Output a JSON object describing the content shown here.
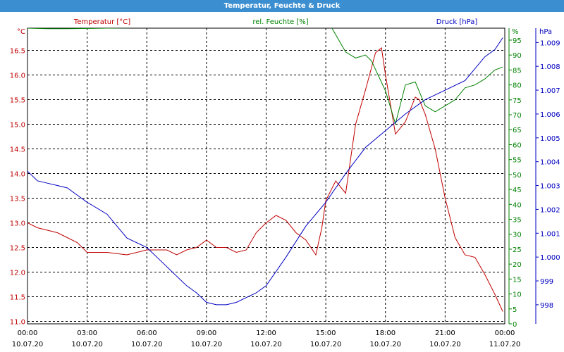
{
  "chart_data": {
    "type": "line",
    "title": "Temperatur, Feuchte & Druck",
    "colors": {
      "temperature": "#c00000",
      "humidity": "#008000",
      "pressure": "#0000c0",
      "title_bar": "#3b8ed0",
      "grid": "#000000"
    },
    "axes": {
      "x": {
        "range": [
          0,
          24
        ],
        "ticks": [
          {
            "h": 0,
            "time": "00:00",
            "date": "10.07.20"
          },
          {
            "h": 3,
            "time": "03:00",
            "date": "10.07.20"
          },
          {
            "h": 6,
            "time": "06:00",
            "date": "10.07.20"
          },
          {
            "h": 9,
            "time": "09:00",
            "date": "10.07.20"
          },
          {
            "h": 12,
            "time": "12:00",
            "date": "10.07.20"
          },
          {
            "h": 15,
            "time": "15:00",
            "date": "10.07.20"
          },
          {
            "h": 18,
            "time": "18:00",
            "date": "10.07.20"
          },
          {
            "h": 21,
            "time": "21:00",
            "date": "10.07.20"
          },
          {
            "h": 24,
            "time": "00:00",
            "date": "11.07.20"
          }
        ]
      },
      "temperature": {
        "label": "Temperatur [°C]",
        "unit": "°C",
        "range": [
          10.95,
          16.95
        ],
        "ticks": [
          "11.0",
          "11.5",
          "12.0",
          "12.5",
          "13.0",
          "13.5",
          "14.0",
          "14.5",
          "15.0",
          "15.5",
          "16.0",
          "16.5"
        ]
      },
      "humidity": {
        "label": "rel. Feuchte [%]",
        "unit": "%",
        "range": [
          0,
          99
        ],
        "ticks": [
          "0",
          "5",
          "10",
          "15",
          "20",
          "25",
          "30",
          "35",
          "40",
          "45",
          "50",
          "55",
          "60",
          "65",
          "70",
          "75",
          "80",
          "85",
          "90",
          "95"
        ],
        "top_label": "%"
      },
      "pressure": {
        "label": "Druck [hPa]",
        "unit": "hPa",
        "range": [
          997.2,
          1009.6
        ],
        "ticks": [
          "998",
          "999",
          "1.000",
          "1.001",
          "1.002",
          "1.003",
          "1.004",
          "1.005",
          "1.006",
          "1.007",
          "1.008",
          "1.009"
        ]
      }
    },
    "series": [
      {
        "name": "Temperatur [°C]",
        "axis": "temperature",
        "x": [
          0,
          0.5,
          1,
          1.5,
          2,
          2.5,
          3,
          4,
          5,
          6,
          7,
          7.5,
          8,
          8.5,
          9,
          9.5,
          10,
          10.5,
          11,
          11.5,
          12,
          12.5,
          13,
          13.5,
          14,
          14.5,
          14.8,
          15,
          15.5,
          16,
          16.5,
          17,
          17.5,
          17.8,
          18,
          18.5,
          19,
          19.5,
          19.7,
          20,
          20.5,
          21,
          21.5,
          22,
          22.5,
          23,
          23.5,
          23.9
        ],
        "values": [
          13.0,
          12.9,
          12.85,
          12.8,
          12.7,
          12.6,
          12.4,
          12.4,
          12.35,
          12.45,
          12.45,
          12.35,
          12.45,
          12.5,
          12.65,
          12.5,
          12.5,
          12.4,
          12.45,
          12.8,
          13.0,
          13.15,
          13.05,
          12.8,
          12.65,
          12.35,
          12.9,
          13.45,
          13.85,
          13.6,
          15.0,
          15.7,
          16.45,
          16.55,
          16.0,
          14.8,
          15.05,
          15.55,
          15.5,
          15.2,
          14.5,
          13.5,
          12.7,
          12.35,
          12.3,
          11.95,
          11.55,
          11.2
        ]
      },
      {
        "name": "rel. Feuchte [%]",
        "axis": "humidity",
        "x": [
          0,
          1,
          2,
          3,
          4,
          5,
          6,
          7,
          8,
          9,
          10,
          11,
          12,
          13,
          14,
          14.4,
          15,
          15.3,
          16,
          16.5,
          17,
          17.3,
          18,
          18.5,
          19,
          19.5,
          20,
          20.5,
          21,
          21.5,
          22,
          22.5,
          23,
          23.5,
          23.9
        ],
        "values": [
          99,
          98.8,
          98.8,
          98.9,
          99,
          99.1,
          99.2,
          99.2,
          99.3,
          99.3,
          99.3,
          99.3,
          99.3,
          99.3,
          99.3,
          99.3,
          99.3,
          99.1,
          91,
          89,
          90,
          88,
          78,
          67,
          80,
          81,
          73,
          71,
          73,
          75,
          79,
          80,
          82,
          85,
          86
        ]
      },
      {
        "name": "Druck [hPa]",
        "axis": "pressure",
        "x": [
          0,
          0.5,
          1,
          1.5,
          2,
          2.5,
          3,
          4,
          5,
          6,
          6.5,
          7,
          7.5,
          8,
          8.5,
          9,
          9.5,
          10,
          10.5,
          11,
          11.5,
          12,
          13,
          14,
          15,
          16,
          17,
          18,
          19,
          20,
          21,
          22,
          23,
          23.5,
          23.9
        ],
        "values": [
          1003.6,
          1003.2,
          1003.1,
          1003.0,
          1002.9,
          1002.6,
          1002.3,
          1001.8,
          1000.8,
          1000.4,
          1000.0,
          999.6,
          999.2,
          998.8,
          998.5,
          998.1,
          998.0,
          998.0,
          998.1,
          998.3,
          998.5,
          998.8,
          1000.0,
          1001.3,
          1002.3,
          1003.5,
          1004.6,
          1005.3,
          1006.0,
          1006.6,
          1007.0,
          1007.4,
          1008.4,
          1008.7,
          1009.2
        ]
      }
    ],
    "grid": true,
    "legend": "top"
  }
}
